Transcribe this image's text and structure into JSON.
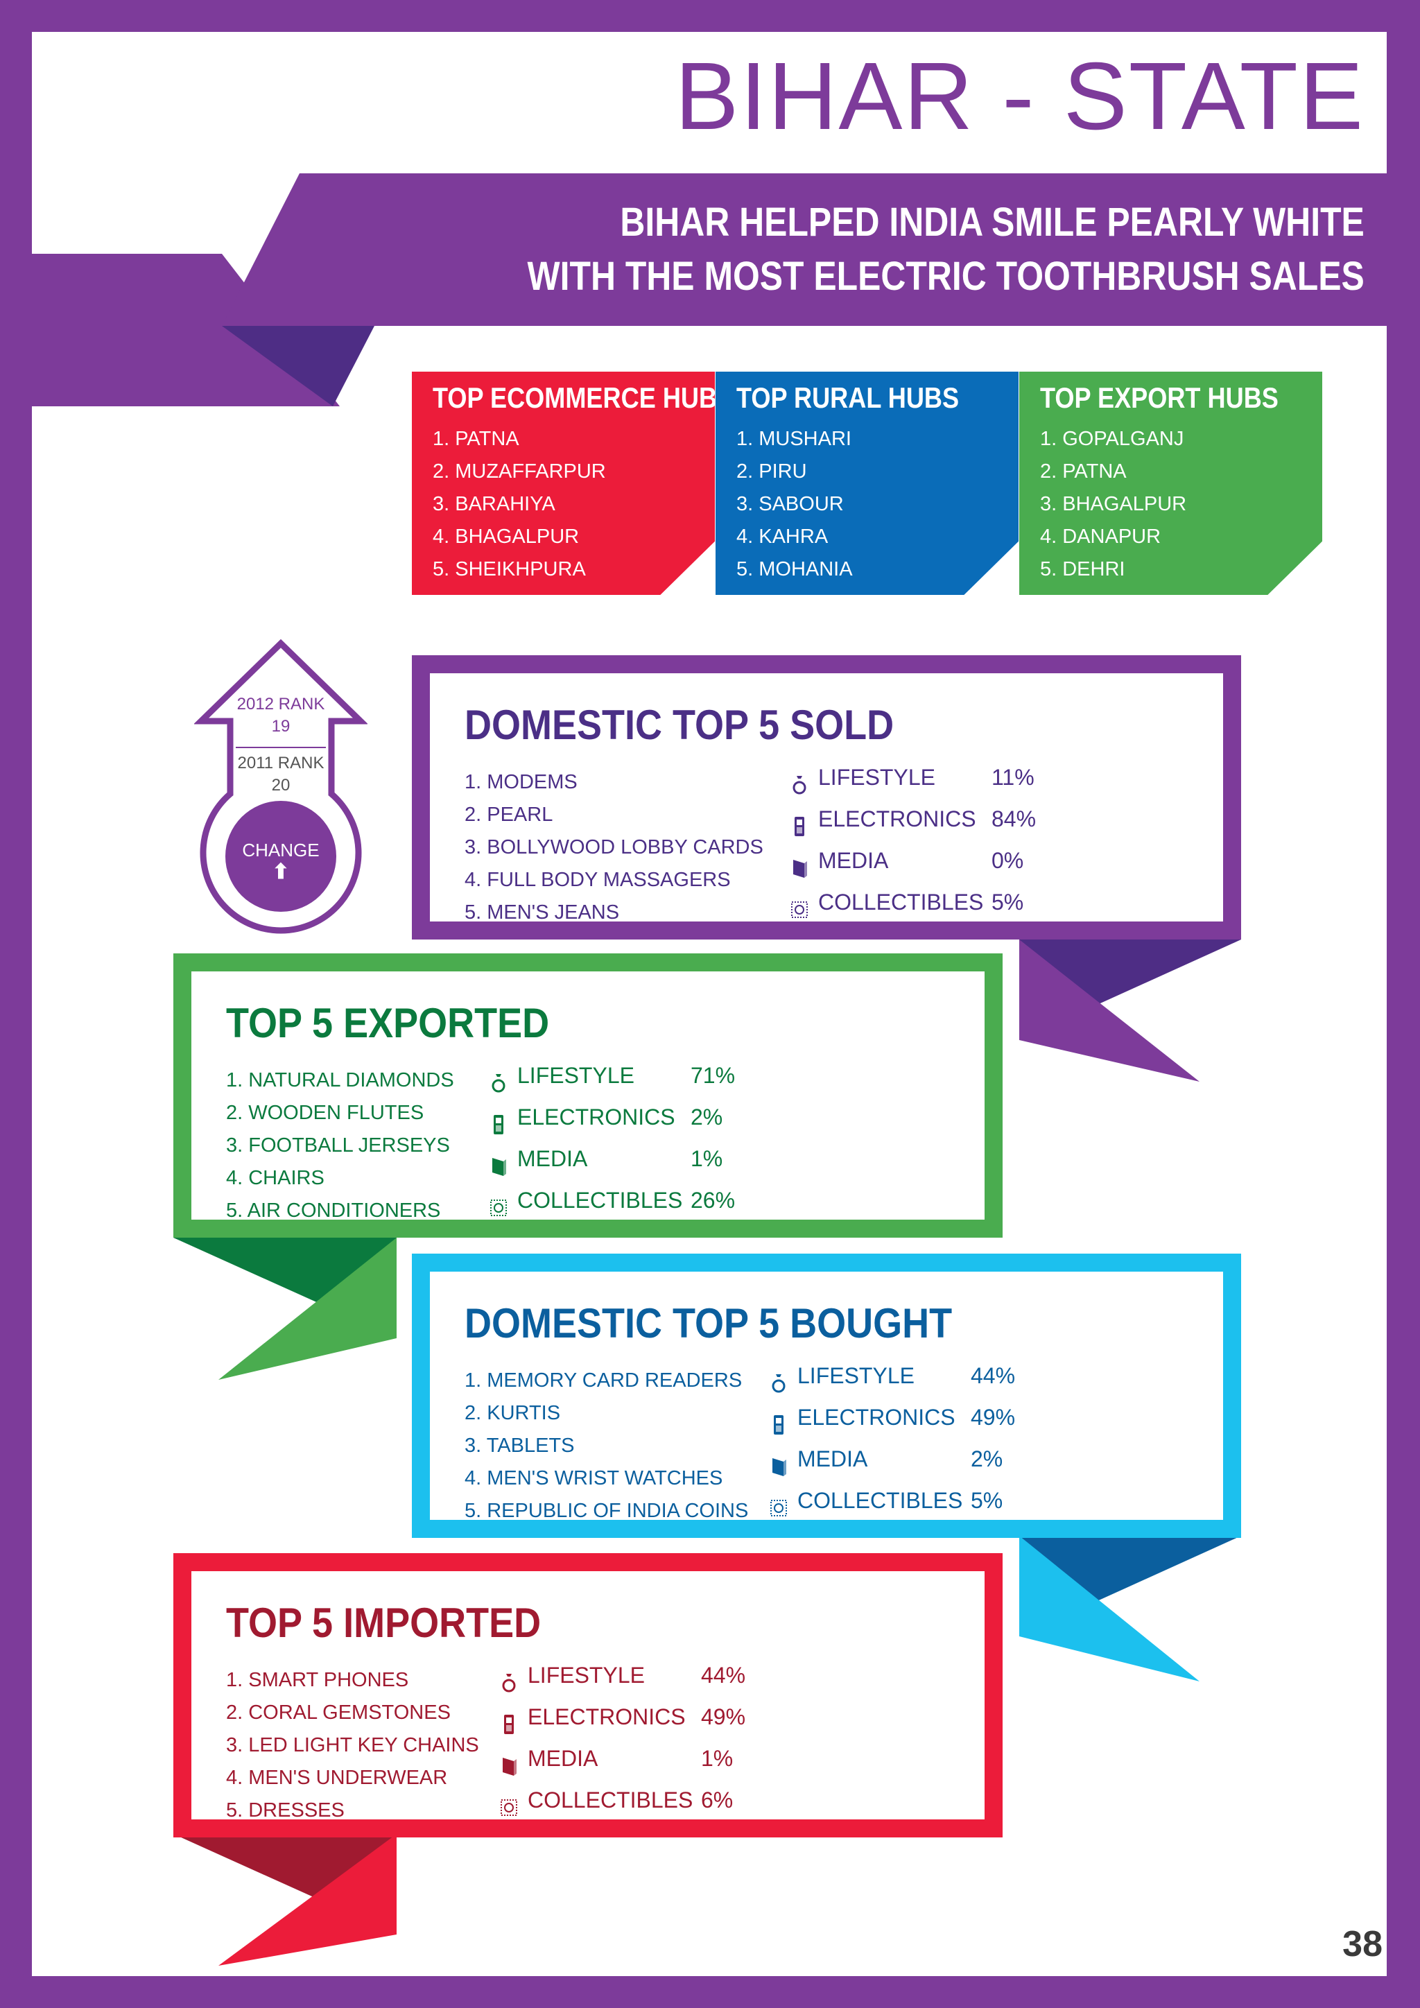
{
  "title": "BIHAR - STATE",
  "subtitle": [
    "BIHAR HELPED INDIA SMILE PEARLY WHITE",
    "WITH THE MOST ELECTRIC TOOTHBRUSH SALES"
  ],
  "hubs": [
    {
      "heading": "TOP ECOMMERCE HUBS",
      "color": "#ec1c3a",
      "items": [
        "1. PATNA",
        "2. MUZAFFARPUR",
        "3. BARAHIYA",
        "4. BHAGALPUR",
        "5. SHEIKHPURA"
      ]
    },
    {
      "heading": "TOP RURAL HUBS",
      "color": "#0a6cb8",
      "items": [
        "1. MUSHARI",
        "2. PIRU",
        "3. SABOUR",
        "4. KAHRA",
        "5. MOHANIA"
      ]
    },
    {
      "heading": "TOP EXPORT HUBS",
      "color": "#4aac4f",
      "items": [
        "1. GOPALGANJ",
        "2. PATNA",
        "3. BHAGALPUR",
        "4. DANAPUR",
        "5. DEHRI"
      ]
    }
  ],
  "rank": {
    "rank_2012_label": "2012 RANK",
    "rank_2012": "19",
    "rank_2011_label": "2011 RANK",
    "rank_2011": "20",
    "change_label": "CHANGE",
    "change_icon": "up-arrow"
  },
  "sections": [
    {
      "title": "DOMESTIC TOP 5 SOLD",
      "color": "#4b2f86",
      "border": "#7d3b9a",
      "items": [
        "1. MODEMS",
        "2. PEARL",
        "3. BOLLYWOOD LOBBY CARDS",
        "4. FULL BODY MASSAGERS",
        "5. MEN'S JEANS"
      ],
      "categories": [
        {
          "icon": "ring-icon",
          "name": "LIFESTYLE",
          "pct": "11%"
        },
        {
          "icon": "phone-icon",
          "name": "ELECTRONICS",
          "pct": "84%"
        },
        {
          "icon": "book-icon",
          "name": "MEDIA",
          "pct": "0%"
        },
        {
          "icon": "stamp-icon",
          "name": "COLLECTIBLES",
          "pct": "5%"
        }
      ]
    },
    {
      "title": "TOP 5 EXPORTED",
      "color": "#0b7a3e",
      "border": "#4aac4f",
      "items": [
        "1. NATURAL DIAMONDS",
        "2. WOODEN FLUTES",
        "3. FOOTBALL JERSEYS",
        "4. CHAIRS",
        "5. AIR CONDITIONERS"
      ],
      "categories": [
        {
          "icon": "ring-icon",
          "name": "LIFESTYLE",
          "pct": "71%"
        },
        {
          "icon": "phone-icon",
          "name": "ELECTRONICS",
          "pct": "2%"
        },
        {
          "icon": "book-icon",
          "name": "MEDIA",
          "pct": "1%"
        },
        {
          "icon": "stamp-icon",
          "name": "COLLECTIBLES",
          "pct": "26%"
        }
      ]
    },
    {
      "title": "DOMESTIC TOP 5 BOUGHT",
      "color": "#0b5f9e",
      "border": "#1cc0ee",
      "items": [
        "1. MEMORY CARD READERS",
        "2. KURTIS",
        "3. TABLETS",
        "4. MEN'S WRIST WATCHES",
        "5. REPUBLIC OF INDIA COINS"
      ],
      "categories": [
        {
          "icon": "ring-icon",
          "name": "LIFESTYLE",
          "pct": "44%"
        },
        {
          "icon": "phone-icon",
          "name": "ELECTRONICS",
          "pct": "49%"
        },
        {
          "icon": "book-icon",
          "name": "MEDIA",
          "pct": "2%"
        },
        {
          "icon": "stamp-icon",
          "name": "COLLECTIBLES",
          "pct": "5%"
        }
      ]
    },
    {
      "title": "TOP 5 IMPORTED",
      "color": "#a01a30",
      "border": "#ec1c3a",
      "items": [
        "1. SMART PHONES",
        "2. CORAL GEMSTONES",
        "3. LED LIGHT KEY CHAINS",
        "4. MEN'S UNDERWEAR",
        "5. DRESSES"
      ],
      "categories": [
        {
          "icon": "ring-icon",
          "name": "LIFESTYLE",
          "pct": "44%"
        },
        {
          "icon": "phone-icon",
          "name": "ELECTRONICS",
          "pct": "49%"
        },
        {
          "icon": "book-icon",
          "name": "MEDIA",
          "pct": "1%"
        },
        {
          "icon": "stamp-icon",
          "name": "COLLECTIBLES",
          "pct": "6%"
        }
      ]
    }
  ],
  "page_number": "38"
}
